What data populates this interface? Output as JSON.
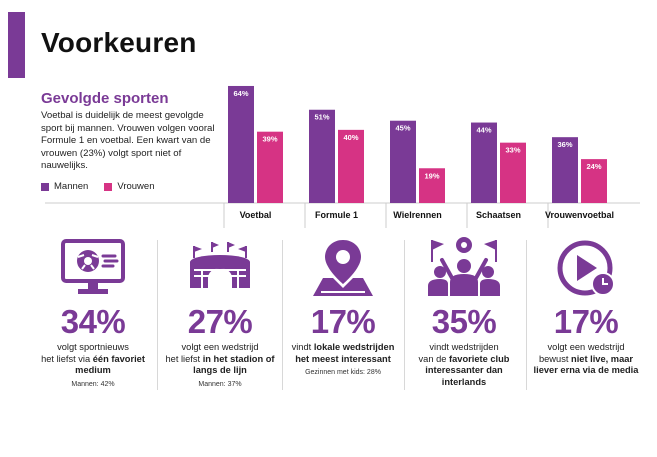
{
  "header": {
    "title": "Voorkeuren"
  },
  "section": {
    "title": "Gevolgde sporten",
    "text": "Voetbal is duidelijk de meest gevolgde sport bij mannen. Vrouwen volgen vooral Formule 1 en voetbal. Een kwart van de vrouwen (23%) volgt sport niet of nauwelijks."
  },
  "colors": {
    "accent": "#7a3a96",
    "men": "#7a3a96",
    "women": "#d63384"
  },
  "chart_data": {
    "type": "bar",
    "categories": [
      "Voetbal",
      "Formule 1",
      "Wielrennen",
      "Schaatsen",
      "Vrouwenvoetbal"
    ],
    "series": [
      {
        "name": "Mannen",
        "values": [
          64,
          51,
          45,
          44,
          36
        ],
        "labels": [
          "64%",
          "51%",
          "45%",
          "44%",
          "36%"
        ],
        "color": "#7a3a96"
      },
      {
        "name": "Vrouwen",
        "values": [
          39,
          40,
          19,
          33,
          24
        ],
        "labels": [
          "39%",
          "40%",
          "19%",
          "33%",
          "24%"
        ],
        "color": "#d63384"
      }
    ],
    "ylim": [
      0,
      70
    ],
    "legend": "bottom-left"
  },
  "stats": [
    {
      "icon": "monitor-football-icon",
      "value": "34%",
      "line1": "volgt sportnieuws",
      "line2": "het liefst via ",
      "bold": "één favoriet medium",
      "note": "Mannen: 42%"
    },
    {
      "icon": "stadium-icon",
      "value": "27%",
      "line1": "volgt een wedstrijd",
      "line2": "het liefst ",
      "bold": "in het stadion of langs de lijn",
      "note": "Mannen: 37%"
    },
    {
      "icon": "location-pin-icon",
      "value": "17%",
      "line1": "vindt ",
      "line2": "",
      "bold": "lokale wedstrijden het meest interessant",
      "note": "Gezinnen met kids: 28%"
    },
    {
      "icon": "supporters-icon",
      "value": "35%",
      "line1": "vindt wedstrijden",
      "line2": "van de ",
      "bold": "favoriete club interessanter dan interlands",
      "note": ""
    },
    {
      "icon": "play-clock-icon",
      "value": "17%",
      "line1": "volgt een wedstrijd",
      "line2": "bewust ",
      "bold": "niet live, maar liever erna via de media",
      "note": ""
    }
  ]
}
